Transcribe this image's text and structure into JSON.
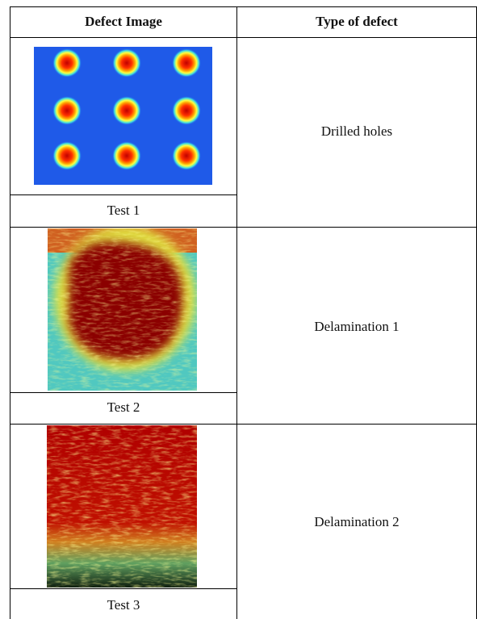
{
  "table": {
    "header": [
      "Defect Image",
      "Type of defect"
    ],
    "rows": [
      {
        "test": "Test 1",
        "type": "Drilled holes"
      },
      {
        "test": "Test 2",
        "type": "Delamination 1"
      },
      {
        "test": "Test 3",
        "type": "Delamination 2"
      }
    ]
  }
}
